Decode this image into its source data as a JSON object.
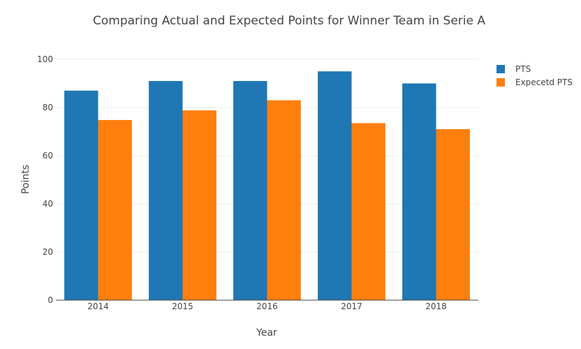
{
  "chart_data": {
    "type": "bar",
    "title": "Comparing Actual and Expected Points for Winner Team in Serie A",
    "xlabel": "Year",
    "ylabel": "Points",
    "categories": [
      "2014",
      "2015",
      "2016",
      "2017",
      "2018"
    ],
    "ylim": [
      0,
      100
    ],
    "yticks": [
      0,
      20,
      40,
      60,
      80,
      100
    ],
    "grid": true,
    "legend_position": "top-right",
    "series": [
      {
        "name": "PTS",
        "values": [
          87,
          91,
          91,
          95,
          90
        ],
        "color": "#1f77b4"
      },
      {
        "name": "Expecetd PTS",
        "values": [
          74.8,
          78.8,
          83,
          73.5,
          71
        ],
        "color": "#ff7f0e"
      }
    ]
  }
}
